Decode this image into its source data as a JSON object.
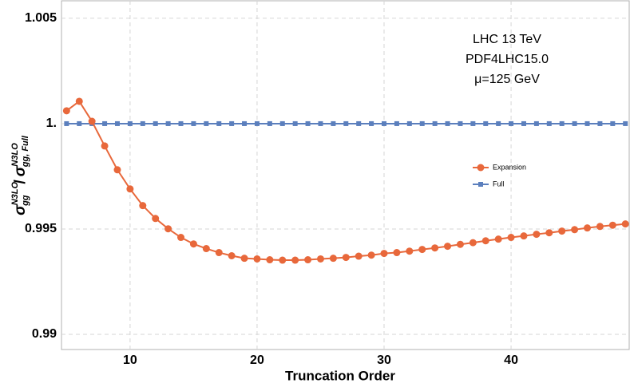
{
  "chart_data": {
    "type": "line",
    "xlabel": "Truncation Order",
    "ylabel": {
      "numerator": {
        "symbol": "σ",
        "sub": "gg",
        "sup": "N3LO"
      },
      "separator": "/",
      "denominator": {
        "symbol": "σ",
        "sub": "gg, Full",
        "sup": "N3LO"
      }
    },
    "annotation": [
      "LHC 13 TeV",
      "PDF4LHC15.0",
      "μ=125 GeV"
    ],
    "x": [
      5,
      6,
      7,
      8,
      9,
      10,
      11,
      12,
      13,
      14,
      15,
      16,
      17,
      18,
      19,
      20,
      21,
      22,
      23,
      24,
      25,
      26,
      27,
      28,
      29,
      30,
      31,
      32,
      33,
      34,
      35,
      36,
      37,
      38,
      39,
      40,
      41,
      42,
      43,
      44,
      45,
      46,
      47,
      48,
      49
    ],
    "series": [
      {
        "name": "Expansion",
        "color": "#e8683b",
        "marker": "circle",
        "values": [
          1.00061,
          1.00106,
          1.00011,
          0.99894,
          0.99781,
          0.9969,
          0.99611,
          0.9955,
          0.99501,
          0.9946,
          0.99429,
          0.99407,
          0.99388,
          0.99373,
          0.99361,
          0.99358,
          0.99354,
          0.99352,
          0.99352,
          0.99354,
          0.99358,
          0.99361,
          0.99365,
          0.99371,
          0.99376,
          0.99384,
          0.99388,
          0.99395,
          0.99403,
          0.9941,
          0.99418,
          0.99427,
          0.99435,
          0.99444,
          0.99452,
          0.9946,
          0.99467,
          0.99475,
          0.99482,
          0.9949,
          0.99497,
          0.99505,
          0.99512,
          0.99518,
          0.99524
        ]
      },
      {
        "name": "Full",
        "color": "#5b7fbd",
        "marker": "square",
        "values": [
          1,
          1,
          1,
          1,
          1,
          1,
          1,
          1,
          1,
          1,
          1,
          1,
          1,
          1,
          1,
          1,
          1,
          1,
          1,
          1,
          1,
          1,
          1,
          1,
          1,
          1,
          1,
          1,
          1,
          1,
          1,
          1,
          1,
          1,
          1,
          1,
          1,
          1,
          1,
          1,
          1,
          1,
          1,
          1,
          1
        ]
      }
    ],
    "xlim": [
      4.6,
      49.3
    ],
    "xticks": [
      10,
      20,
      30,
      40
    ],
    "ylim": [
      0.98928,
      1.00583
    ],
    "yticks": [
      {
        "value": 0.99,
        "label": "0.99"
      },
      {
        "value": 0.995,
        "label": "0.995"
      },
      {
        "value": 1,
        "label": "1."
      },
      {
        "value": 1.005,
        "label": "1.005"
      }
    ],
    "grid": true,
    "legend": "right"
  }
}
